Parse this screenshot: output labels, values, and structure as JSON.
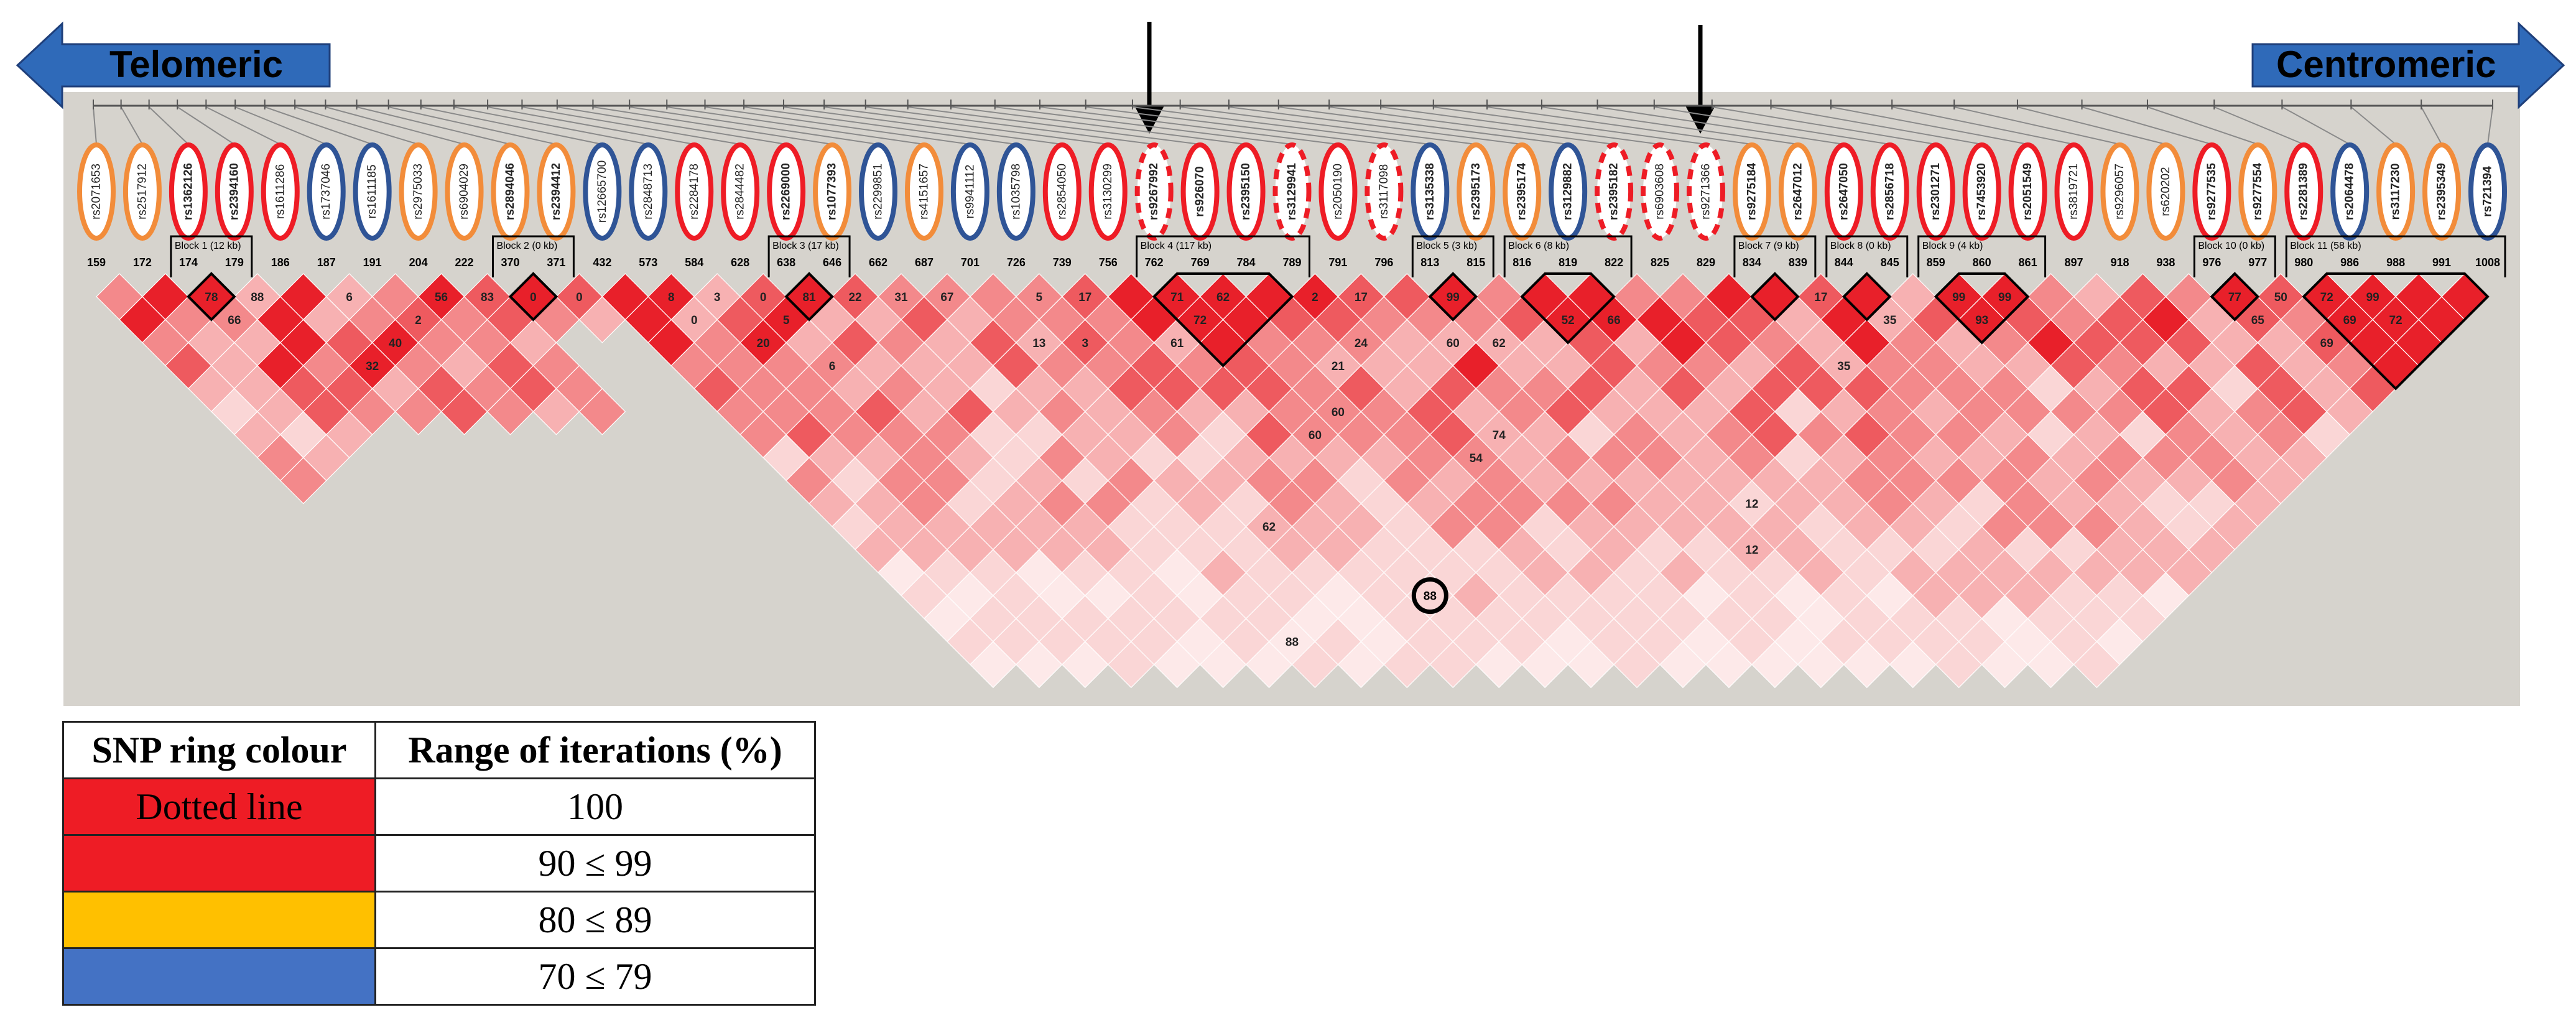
{
  "direction": {
    "left_label": "Telomeric",
    "right_label": "Centromeric",
    "arrow_color": "#2f6ab9"
  },
  "colors": {
    "red": "#ee1c25",
    "orange": "#f28c3a",
    "blue": "#2f5496",
    "legend_orange": "#ffc000",
    "legend_blue": "#4472c4",
    "panel_bg": "#d6d3cd"
  },
  "snps": [
    {
      "id": "rs2071653",
      "ring": "orange",
      "bold": false
    },
    {
      "id": "rs2517912",
      "ring": "orange",
      "bold": false
    },
    {
      "id": "rs1362126",
      "ring": "red",
      "bold": true
    },
    {
      "id": "rs2394160",
      "ring": "red",
      "bold": true
    },
    {
      "id": "rs1611286",
      "ring": "red",
      "bold": false
    },
    {
      "id": "rs1737046",
      "ring": "blue",
      "bold": false
    },
    {
      "id": "rs1611185",
      "ring": "blue",
      "bold": false
    },
    {
      "id": "rs2975033",
      "ring": "orange",
      "bold": false
    },
    {
      "id": "rs6904029",
      "ring": "orange",
      "bold": false
    },
    {
      "id": "rs2894046",
      "ring": "orange",
      "bold": true
    },
    {
      "id": "rs2394412",
      "ring": "orange",
      "bold": true
    },
    {
      "id": "rs12665700",
      "ring": "blue",
      "bold": false
    },
    {
      "id": "rs2848713",
      "ring": "blue",
      "bold": false
    },
    {
      "id": "rs2284178",
      "ring": "red",
      "bold": false
    },
    {
      "id": "rs2844482",
      "ring": "red",
      "bold": false
    },
    {
      "id": "rs2269000",
      "ring": "red",
      "bold": true
    },
    {
      "id": "rs1077393",
      "ring": "orange",
      "bold": true
    },
    {
      "id": "rs2299851",
      "ring": "blue",
      "bold": false
    },
    {
      "id": "rs4151657",
      "ring": "orange",
      "bold": false
    },
    {
      "id": "rs9941112",
      "ring": "blue",
      "bold": false
    },
    {
      "id": "rs1035798",
      "ring": "blue",
      "bold": false
    },
    {
      "id": "rs2854050",
      "ring": "red",
      "bold": false
    },
    {
      "id": "rs3130299",
      "ring": "red",
      "bold": false
    },
    {
      "id": "rs9267992",
      "ring": "red-dotted",
      "bold": true
    },
    {
      "id": "rs926070",
      "ring": "red",
      "bold": true
    },
    {
      "id": "rs2395150",
      "ring": "red",
      "bold": true
    },
    {
      "id": "rs3129941",
      "ring": "red-dotted",
      "bold": true
    },
    {
      "id": "rs2050190",
      "ring": "red",
      "bold": false
    },
    {
      "id": "rs3117098",
      "ring": "red-dotted",
      "bold": false
    },
    {
      "id": "rs3135338",
      "ring": "blue",
      "bold": true
    },
    {
      "id": "rs2395173",
      "ring": "orange",
      "bold": true
    },
    {
      "id": "rs2395174",
      "ring": "orange",
      "bold": true
    },
    {
      "id": "rs3129882",
      "ring": "blue",
      "bold": true
    },
    {
      "id": "rs2395182",
      "ring": "red-dotted",
      "bold": true
    },
    {
      "id": "rs6903608",
      "ring": "red-dotted",
      "bold": false
    },
    {
      "id": "rs9271366",
      "ring": "red-dotted",
      "bold": false
    },
    {
      "id": "rs9275184",
      "ring": "orange",
      "bold": true
    },
    {
      "id": "rs2647012",
      "ring": "orange",
      "bold": true
    },
    {
      "id": "rs2647050",
      "ring": "red",
      "bold": true
    },
    {
      "id": "rs2856718",
      "ring": "red",
      "bold": true
    },
    {
      "id": "rs2301271",
      "ring": "red",
      "bold": true
    },
    {
      "id": "rs7453920",
      "ring": "red",
      "bold": true
    },
    {
      "id": "rs2051549",
      "ring": "red",
      "bold": true
    },
    {
      "id": "rs3819721",
      "ring": "red",
      "bold": false
    },
    {
      "id": "rs9296057",
      "ring": "orange",
      "bold": false
    },
    {
      "id": "rs620202",
      "ring": "orange",
      "bold": false
    },
    {
      "id": "rs9277535",
      "ring": "red",
      "bold": true
    },
    {
      "id": "rs9277554",
      "ring": "orange",
      "bold": true
    },
    {
      "id": "rs2281389",
      "ring": "red",
      "bold": true
    },
    {
      "id": "rs2064478",
      "ring": "blue",
      "bold": true
    },
    {
      "id": "rs3117230",
      "ring": "orange",
      "bold": true
    },
    {
      "id": "rs2395349",
      "ring": "orange",
      "bold": true
    },
    {
      "id": "rs721394",
      "ring": "blue",
      "bold": true
    }
  ],
  "marker_numbers": [
    "159",
    "172",
    "174",
    "179",
    "186",
    "187",
    "191",
    "204",
    "222",
    "370",
    "371",
    "432",
    "573",
    "584",
    "628",
    "638",
    "646",
    "662",
    "687",
    "701",
    "726",
    "739",
    "756",
    "762",
    "769",
    "784",
    "789",
    "791",
    "796",
    "813",
    "815",
    "816",
    "819",
    "822",
    "825",
    "829",
    "834",
    "839",
    "844",
    "845",
    "859",
    "860",
    "861",
    "897",
    "918",
    "938",
    "976",
    "977",
    "980",
    "986",
    "988",
    "991",
    "1008"
  ],
  "blocks": [
    {
      "label": "Block 1 (12 kb)",
      "from": 2,
      "to": 3
    },
    {
      "label": "Block 2 (0 kb)",
      "from": 9,
      "to": 10
    },
    {
      "label": "Block 3 (17 kb)",
      "from": 15,
      "to": 16
    },
    {
      "label": "Block 4 (117 kb)",
      "from": 23,
      "to": 26
    },
    {
      "label": "Block 5 (3 kb)",
      "from": 29,
      "to": 30
    },
    {
      "label": "Block 6 (8 kb)",
      "from": 31,
      "to": 33
    },
    {
      "label": "Block 7 (9 kb)",
      "from": 36,
      "to": 37
    },
    {
      "label": "Block 8 (0 kb)",
      "from": 38,
      "to": 39
    },
    {
      "label": "Block 9 (4 kb)",
      "from": 40,
      "to": 42
    },
    {
      "label": "Block 10 (0 kb)",
      "from": 46,
      "to": 47
    },
    {
      "label": "Block 11 (58 kb)",
      "from": 48,
      "to": 52
    }
  ],
  "ld_values": [
    {
      "i": 2,
      "j": 3,
      "v": "78"
    },
    {
      "i": 3,
      "j": 4,
      "v": "88"
    },
    {
      "i": 2,
      "j": 4,
      "v": "66"
    },
    {
      "i": 7,
      "j": 8,
      "v": "56"
    },
    {
      "i": 8,
      "j": 9,
      "v": "83"
    },
    {
      "i": 5,
      "j": 6,
      "v": "6"
    },
    {
      "i": 6,
      "j": 8,
      "v": "2"
    },
    {
      "i": 5,
      "j": 8,
      "v": "40"
    },
    {
      "i": 4,
      "j": 8,
      "v": "32"
    },
    {
      "i": 9,
      "j": 10,
      "v": "0"
    },
    {
      "i": 10,
      "j": 11,
      "v": "0"
    },
    {
      "i": 12,
      "j": 13,
      "v": "8"
    },
    {
      "i": 13,
      "j": 14,
      "v": "3"
    },
    {
      "i": 12,
      "j": 14,
      "v": "0"
    },
    {
      "i": 14,
      "j": 15,
      "v": "0"
    },
    {
      "i": 15,
      "j": 16,
      "v": "81"
    },
    {
      "i": 14,
      "j": 16,
      "v": "5"
    },
    {
      "i": 13,
      "j": 16,
      "v": "20"
    },
    {
      "i": 14,
      "j": 18,
      "v": "6"
    },
    {
      "i": 16,
      "j": 17,
      "v": "22"
    },
    {
      "i": 17,
      "j": 18,
      "v": "31"
    },
    {
      "i": 18,
      "j": 19,
      "v": "67"
    },
    {
      "i": 20,
      "j": 21,
      "v": "5"
    },
    {
      "i": 21,
      "j": 22,
      "v": "17"
    },
    {
      "i": 19,
      "j": 22,
      "v": "13"
    },
    {
      "i": 20,
      "j": 23,
      "v": "3"
    },
    {
      "i": 23,
      "j": 24,
      "v": "71"
    },
    {
      "i": 24,
      "j": 25,
      "v": "62"
    },
    {
      "i": 23,
      "j": 25,
      "v": "72"
    },
    {
      "i": 22,
      "j": 25,
      "v": "61"
    },
    {
      "i": 26,
      "j": 27,
      "v": "2"
    },
    {
      "i": 27,
      "j": 28,
      "v": "17"
    },
    {
      "i": 26,
      "j": 29,
      "v": "24"
    },
    {
      "i": 25,
      "j": 29,
      "v": "21"
    },
    {
      "i": 24,
      "j": 30,
      "v": "60"
    },
    {
      "i": 23,
      "j": 30,
      "v": "60"
    },
    {
      "i": 29,
      "j": 30,
      "v": "99"
    },
    {
      "i": 28,
      "j": 31,
      "v": "60"
    },
    {
      "i": 29,
      "j": 32,
      "v": "62"
    },
    {
      "i": 31,
      "j": 33,
      "v": "52"
    },
    {
      "i": 32,
      "j": 34,
      "v": "66"
    },
    {
      "i": 27,
      "j": 34,
      "v": "74"
    },
    {
      "i": 26,
      "j": 34,
      "v": "54"
    },
    {
      "i": 20,
      "j": 31,
      "v": "62"
    },
    {
      "i": 40,
      "j": 41,
      "v": "99"
    },
    {
      "i": 41,
      "j": 42,
      "v": "99"
    },
    {
      "i": 40,
      "j": 42,
      "v": "93"
    },
    {
      "i": 46,
      "j": 47,
      "v": "77"
    },
    {
      "i": 47,
      "j": 48,
      "v": "50"
    },
    {
      "i": 48,
      "j": 49,
      "v": "72"
    },
    {
      "i": 49,
      "j": 50,
      "v": "99"
    },
    {
      "i": 46,
      "j": 48,
      "v": "65"
    },
    {
      "i": 48,
      "j": 50,
      "v": "69"
    },
    {
      "i": 47,
      "j": 50,
      "v": "69"
    },
    {
      "i": 49,
      "j": 51,
      "v": "72"
    },
    {
      "i": 37,
      "j": 38,
      "v": "17"
    },
    {
      "i": 38,
      "j": 40,
      "v": "35"
    },
    {
      "i": 36,
      "j": 40,
      "v": "35"
    },
    {
      "i": 18,
      "j": 34,
      "v": "88"
    },
    {
      "i": 31,
      "j": 41,
      "v": "12"
    },
    {
      "i": 30,
      "j": 42,
      "v": "12"
    }
  ],
  "highlight": {
    "i": 22,
    "j": 36,
    "v": "88"
  },
  "legend": {
    "header_ring": "SNP ring colour",
    "header_range": "Range of iterations (%)",
    "rows": [
      {
        "label": "Dotted line",
        "color": "#ee1c25",
        "range": "100"
      },
      {
        "label": "",
        "color": "#ee1c25",
        "range": "90 ≤ 99"
      },
      {
        "label": "",
        "color": "#ffc000",
        "range": "80 ≤ 89"
      },
      {
        "label": "",
        "color": "#4472c4",
        "range": "70 ≤ 79"
      }
    ]
  }
}
